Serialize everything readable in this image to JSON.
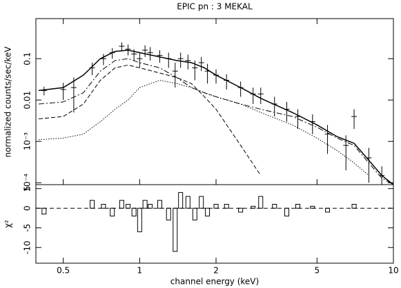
{
  "chart_data": [
    {
      "type": "line",
      "title": "EPIC pn : 3 MEKAL",
      "ylabel": "normalized counts/sec/keV",
      "log_x": true,
      "log_y": true,
      "xlim": [
        0.39,
        10
      ],
      "ylim": [
        9e-05,
        0.93
      ],
      "yticks": [
        {
          "value": 0.0001,
          "label": "10⁻⁴"
        },
        {
          "value": 0.001,
          "label": "10⁻³"
        },
        0.01,
        0.1
      ],
      "x": [
        0.4,
        0.5,
        0.6,
        0.7,
        0.8,
        0.9,
        1.0,
        1.2,
        1.4,
        1.6,
        1.8,
        2.0,
        2.5,
        3,
        4,
        5,
        6,
        7,
        8,
        9,
        10
      ],
      "series": [
        {
          "color": "#000000",
          "dash": "solid",
          "values": [
            0.017,
            0.02,
            0.04,
            0.1,
            0.15,
            0.16,
            0.14,
            0.11,
            0.09,
            0.08,
            0.06,
            0.04,
            0.02,
            0.011,
            0.005,
            0.0025,
            0.0013,
            0.0009,
            0.00035,
            0.00015,
            9e-05
          ]
        },
        {
          "color": "#000000",
          "dash": "dashed",
          "values": [
            0.0035,
            0.004,
            0.008,
            0.03,
            0.06,
            0.07,
            0.06,
            0.045,
            0.035,
            0.025,
            0.012,
            0.006,
            0.0008,
            0.00015,
            null,
            null,
            null,
            null,
            null,
            null,
            null
          ]
        },
        {
          "color": "#000000",
          "dash": "dashdot",
          "values": [
            0.008,
            0.009,
            0.015,
            0.05,
            0.09,
            0.1,
            0.08,
            0.06,
            0.035,
            0.02,
            0.015,
            0.012,
            0.008,
            0.006,
            0.004,
            0.0022,
            0.0012,
            0.0008,
            0.0003,
            0.00013,
            9e-05
          ]
        },
        {
          "color": "#000000",
          "dash": "dotted",
          "values": [
            0.0011,
            0.0012,
            0.0015,
            0.003,
            0.006,
            0.01,
            0.02,
            0.03,
            0.025,
            0.02,
            0.015,
            0.012,
            0.008,
            0.005,
            0.0025,
            0.0012,
            0.0006,
            0.0003,
            0.00015,
            null,
            null
          ]
        }
      ],
      "points": {
        "x": [
          0.42,
          0.5,
          0.55,
          0.65,
          0.72,
          0.78,
          0.85,
          0.9,
          0.95,
          1.0,
          1.05,
          1.1,
          1.2,
          1.3,
          1.38,
          1.45,
          1.55,
          1.65,
          1.75,
          1.85,
          2.0,
          2.2,
          2.5,
          2.8,
          3.0,
          3.4,
          3.8,
          4.2,
          4.8,
          5.5,
          6.5,
          7.0,
          8.0,
          9.0
        ],
        "y": [
          0.017,
          0.018,
          0.02,
          0.06,
          0.1,
          0.14,
          0.2,
          0.17,
          0.13,
          0.1,
          0.16,
          0.14,
          0.12,
          0.1,
          0.05,
          0.1,
          0.09,
          0.06,
          0.08,
          0.05,
          0.04,
          0.03,
          0.02,
          0.014,
          0.014,
          0.008,
          0.006,
          0.004,
          0.003,
          0.0015,
          0.0008,
          0.004,
          0.0004,
          0.00015
        ],
        "yerr": [
          0.004,
          0.008,
          0.015,
          0.02,
          0.03,
          0.04,
          0.05,
          0.05,
          0.04,
          0.04,
          0.05,
          0.05,
          0.04,
          0.04,
          0.03,
          0.04,
          0.035,
          0.03,
          0.03,
          0.025,
          0.015,
          0.012,
          0.008,
          0.006,
          0.006,
          0.004,
          0.003,
          0.002,
          0.0015,
          0.001,
          0.0006,
          0.002,
          0.0003,
          0.0001
        ]
      }
    },
    {
      "type": "bar",
      "xlabel": "channel energy (keV)",
      "ylabel": "χ²",
      "log_x": true,
      "xlim": [
        0.39,
        10
      ],
      "xticks": [
        0.5,
        1,
        2,
        5,
        10
      ],
      "ylim": [
        -14,
        6
      ],
      "yticks": [
        -10,
        -5,
        0,
        5
      ],
      "x": [
        0.42,
        0.5,
        0.55,
        0.65,
        0.72,
        0.78,
        0.85,
        0.9,
        0.95,
        1.0,
        1.05,
        1.1,
        1.2,
        1.3,
        1.38,
        1.45,
        1.55,
        1.65,
        1.75,
        1.85,
        2.0,
        2.2,
        2.5,
        2.8,
        3.0,
        3.4,
        3.8,
        4.2,
        4.8,
        5.5,
        6.5,
        7.0,
        8.0,
        9.0
      ],
      "values": [
        -1.5,
        0,
        0,
        2,
        1,
        -2,
        2,
        1,
        -2,
        -6,
        2,
        1,
        2,
        -3,
        -11,
        4,
        3,
        -3,
        3,
        -2,
        1,
        1,
        -1,
        0.5,
        3,
        1,
        -2,
        1,
        0.5,
        -1,
        0,
        1,
        0,
        0
      ]
    }
  ]
}
